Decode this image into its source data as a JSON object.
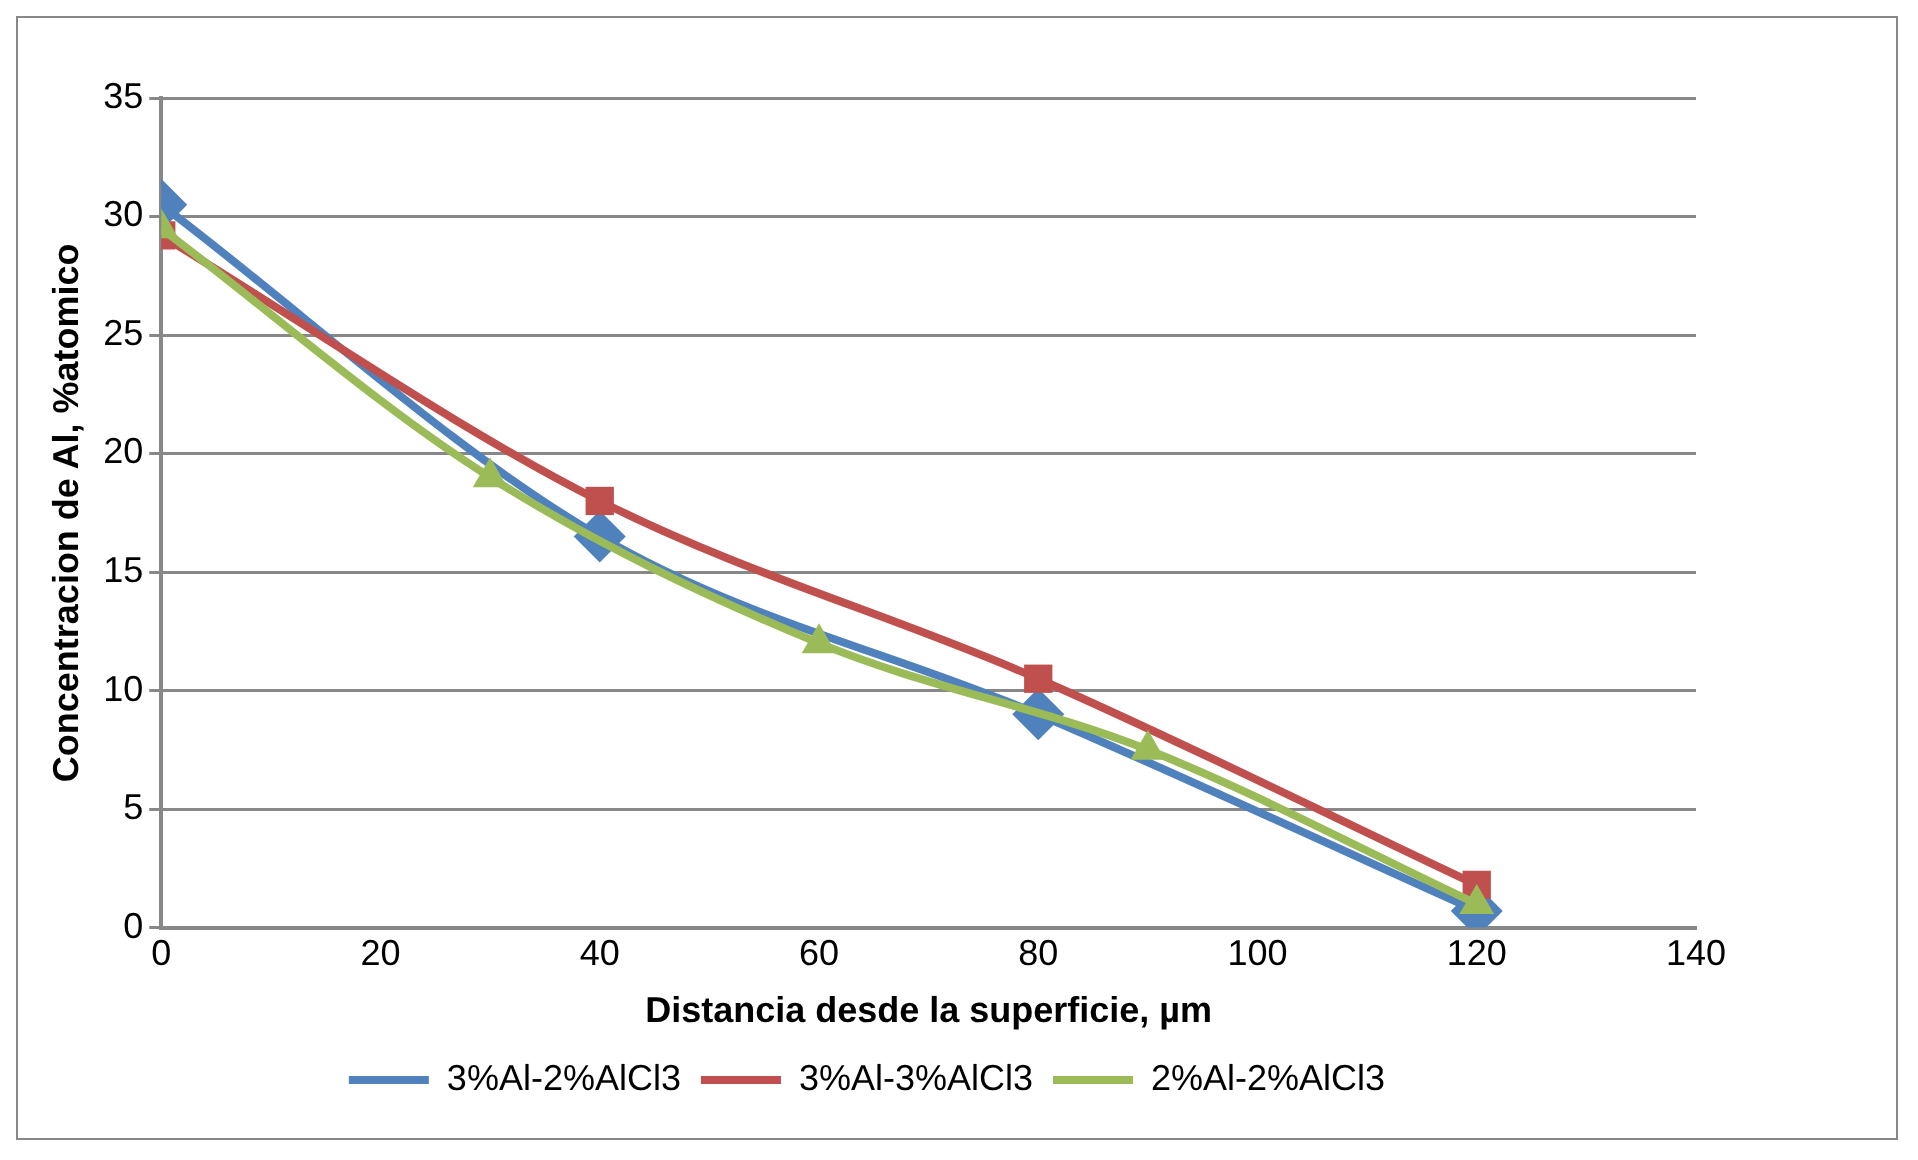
{
  "chart_data": {
    "type": "line",
    "xlabel": "Distancia desde la superficie, µm",
    "ylabel": "Concentracion de Al, %atomico",
    "xlim": [
      0,
      140
    ],
    "xticks": [
      0,
      20,
      40,
      60,
      80,
      100,
      120,
      140
    ],
    "ylim": [
      0,
      35
    ],
    "yticks": [
      0,
      5,
      10,
      15,
      20,
      25,
      30,
      35
    ],
    "grid": "y",
    "legend": "bottom",
    "series": [
      {
        "name": "3%Al-2%AlCl3",
        "color": "#4f81bd",
        "marker": "diamond",
        "x": [
          0,
          40,
          80,
          120
        ],
        "values": [
          30.5,
          16.5,
          9,
          0.7
        ]
      },
      {
        "name": "3%Al-3%AlCl3",
        "color": "#c0504d",
        "marker": "square",
        "x": [
          0,
          40,
          80,
          120
        ],
        "values": [
          29.2,
          18,
          10.5,
          1.8
        ]
      },
      {
        "name": "2%Al-2%AlCl3",
        "color": "#9bbb59",
        "marker": "triangle",
        "x": [
          0,
          30,
          60,
          90,
          120
        ],
        "values": [
          29.5,
          19,
          12,
          7.5,
          1
        ]
      }
    ]
  }
}
